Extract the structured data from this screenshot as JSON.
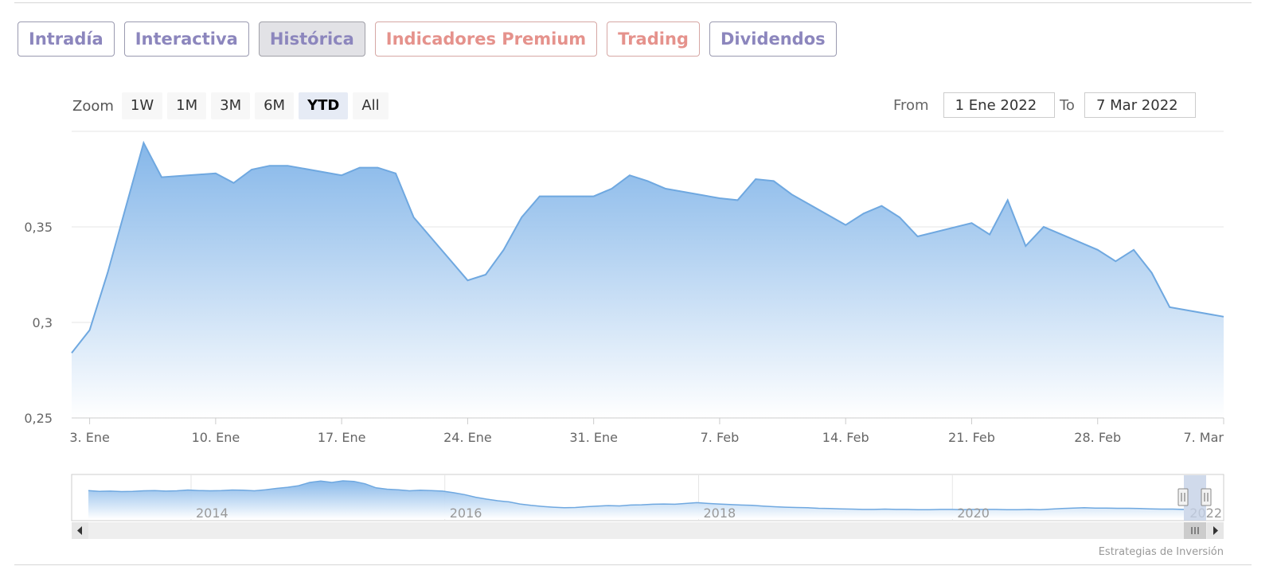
{
  "tabs": [
    {
      "label": "Intradía",
      "kind": "normal",
      "active": false
    },
    {
      "label": "Interactiva",
      "kind": "normal",
      "active": false
    },
    {
      "label": "Histórica",
      "kind": "normal",
      "active": true
    },
    {
      "label": "Indicadores Premium",
      "kind": "premium",
      "active": false
    },
    {
      "label": "Trading",
      "kind": "premium",
      "active": false
    },
    {
      "label": "Dividendos",
      "kind": "normal",
      "active": false
    }
  ],
  "zoom": {
    "label": "Zoom",
    "buttons": [
      "1W",
      "1M",
      "3M",
      "6M",
      "YTD",
      "All"
    ],
    "selected": "YTD"
  },
  "range": {
    "from_label": "From",
    "from_value": "1 Ene 2022",
    "to_label": "To",
    "to_value": "7 Mar 2022"
  },
  "colors": {
    "line": "#6fa8e0",
    "area_top": "#7fb3e8",
    "area_bottom": "#ffffff",
    "tab_text": "#8c86bd",
    "premium_text": "#e5928c"
  },
  "chart_data": {
    "type": "area",
    "ylim": [
      0.25,
      0.4
    ],
    "yticks": [
      {
        "value": 0.25,
        "label": "0,25"
      },
      {
        "value": 0.3,
        "label": "0,3"
      },
      {
        "value": 0.35,
        "label": "0,35"
      }
    ],
    "x_start": "2022-01-02",
    "x_end": "2022-03-07",
    "xticks": [
      {
        "date": "2022-01-03",
        "label": "3. Ene"
      },
      {
        "date": "2022-01-10",
        "label": "10. Ene"
      },
      {
        "date": "2022-01-17",
        "label": "17. Ene"
      },
      {
        "date": "2022-01-24",
        "label": "24. Ene"
      },
      {
        "date": "2022-01-31",
        "label": "31. Ene"
      },
      {
        "date": "2022-02-07",
        "label": "7. Feb"
      },
      {
        "date": "2022-02-14",
        "label": "14. Feb"
      },
      {
        "date": "2022-02-21",
        "label": "21. Feb"
      },
      {
        "date": "2022-02-28",
        "label": "28. Feb"
      },
      {
        "date": "2022-03-07",
        "label": "7. Mar"
      }
    ],
    "series": [
      {
        "points": [
          [
            "2022-01-02",
            0.284
          ],
          [
            "2022-01-03",
            0.296
          ],
          [
            "2022-01-04",
            0.326
          ],
          [
            "2022-01-05",
            0.36
          ],
          [
            "2022-01-06",
            0.394
          ],
          [
            "2022-01-07",
            0.376
          ],
          [
            "2022-01-10",
            0.378
          ],
          [
            "2022-01-11",
            0.373
          ],
          [
            "2022-01-12",
            0.38
          ],
          [
            "2022-01-13",
            0.382
          ],
          [
            "2022-01-14",
            0.382
          ],
          [
            "2022-01-17",
            0.377
          ],
          [
            "2022-01-18",
            0.381
          ],
          [
            "2022-01-19",
            0.381
          ],
          [
            "2022-01-20",
            0.378
          ],
          [
            "2022-01-21",
            0.355
          ],
          [
            "2022-01-24",
            0.322
          ],
          [
            "2022-01-25",
            0.325
          ],
          [
            "2022-01-26",
            0.338
          ],
          [
            "2022-01-27",
            0.355
          ],
          [
            "2022-01-28",
            0.366
          ],
          [
            "2022-01-31",
            0.366
          ],
          [
            "2022-02-01",
            0.37
          ],
          [
            "2022-02-02",
            0.377
          ],
          [
            "2022-02-03",
            0.374
          ],
          [
            "2022-02-04",
            0.37
          ],
          [
            "2022-02-07",
            0.365
          ],
          [
            "2022-02-08",
            0.364
          ],
          [
            "2022-02-09",
            0.375
          ],
          [
            "2022-02-10",
            0.374
          ],
          [
            "2022-02-11",
            0.367
          ],
          [
            "2022-02-14",
            0.351
          ],
          [
            "2022-02-15",
            0.357
          ],
          [
            "2022-02-16",
            0.361
          ],
          [
            "2022-02-17",
            0.355
          ],
          [
            "2022-02-18",
            0.345
          ],
          [
            "2022-02-21",
            0.352
          ],
          [
            "2022-02-22",
            0.346
          ],
          [
            "2022-02-23",
            0.364
          ],
          [
            "2022-02-24",
            0.34
          ],
          [
            "2022-02-25",
            0.35
          ],
          [
            "2022-02-28",
            0.338
          ],
          [
            "2022-03-01",
            0.332
          ],
          [
            "2022-03-02",
            0.338
          ],
          [
            "2022-03-03",
            0.326
          ],
          [
            "2022-03-04",
            0.308
          ],
          [
            "2022-03-07",
            0.303
          ]
        ]
      }
    ]
  },
  "navigator": {
    "year_labels": [
      "2014",
      "2016",
      "2018",
      "2020",
      "2022"
    ],
    "series": [
      1.0,
      0.97,
      0.98,
      0.96,
      0.97,
      0.99,
      1.0,
      0.98,
      0.99,
      1.02,
      1.0,
      0.99,
      1.0,
      1.02,
      1.01,
      0.99,
      1.03,
      1.08,
      1.12,
      1.18,
      1.3,
      1.35,
      1.3,
      1.36,
      1.34,
      1.25,
      1.1,
      1.05,
      1.03,
      0.99,
      1.01,
      1.0,
      0.98,
      0.92,
      0.85,
      0.75,
      0.68,
      0.62,
      0.58,
      0.5,
      0.45,
      0.41,
      0.38,
      0.36,
      0.37,
      0.4,
      0.42,
      0.44,
      0.43,
      0.46,
      0.47,
      0.49,
      0.5,
      0.49,
      0.52,
      0.55,
      0.52,
      0.5,
      0.48,
      0.46,
      0.45,
      0.42,
      0.4,
      0.38,
      0.37,
      0.36,
      0.34,
      0.33,
      0.32,
      0.31,
      0.3,
      0.3,
      0.31,
      0.3,
      0.3,
      0.29,
      0.29,
      0.3,
      0.3,
      0.29,
      0.3,
      0.3,
      0.3,
      0.29,
      0.29,
      0.3,
      0.29,
      0.31,
      0.33,
      0.35,
      0.36,
      0.35,
      0.35,
      0.34,
      0.34,
      0.33,
      0.32,
      0.31,
      0.31,
      0.3
    ],
    "credit": "Estrategias de Inversión"
  }
}
